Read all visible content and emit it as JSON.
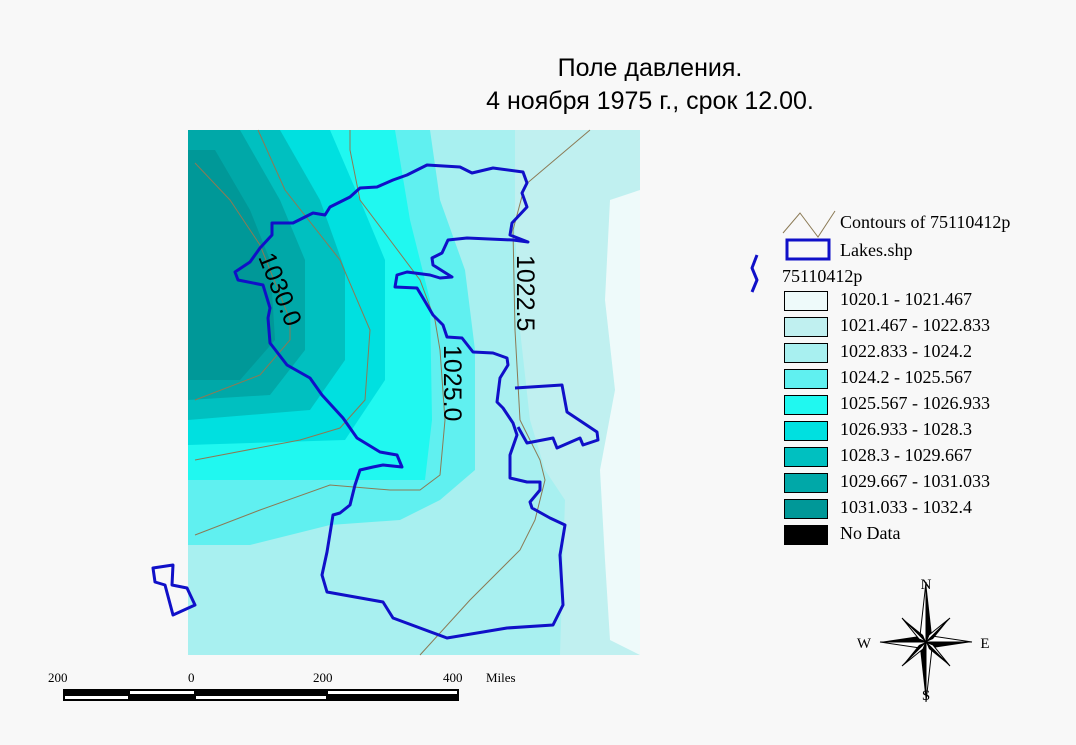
{
  "title": {
    "line1": "Поле давления.",
    "line2": "4 ноября 1975 г., срок 12.00."
  },
  "map": {
    "contour_labels": [
      "1030.0",
      "1025.0",
      "1022.5"
    ],
    "colors": {
      "lake": "#1010c8",
      "contour": "#8b7a55",
      "background": "#f8f8f8"
    }
  },
  "legend": {
    "contours_label": "Contours of 75110412p",
    "lakes_label": "Lakes.shp",
    "grid_title": "75110412p",
    "classes": [
      {
        "label": "1020.1 - 1021.467",
        "color": "#eefafa"
      },
      {
        "label": "1021.467 - 1022.833",
        "color": "#c0f0f0"
      },
      {
        "label": "1022.833 - 1024.2",
        "color": "#a8f0f0"
      },
      {
        "label": "1024.2 - 1025.567",
        "color": "#60f0f0"
      },
      {
        "label": "1025.567 - 1026.933",
        "color": "#20f8f0"
      },
      {
        "label": "1026.933 - 1028.3",
        "color": "#00e0e0"
      },
      {
        "label": "1028.3 - 1029.667",
        "color": "#00c0c0"
      },
      {
        "label": "1029.667 - 1031.033",
        "color": "#00a8a8"
      },
      {
        "label": "1031.033 - 1032.4",
        "color": "#009898"
      },
      {
        "label": "No Data",
        "color": "#000000"
      }
    ]
  },
  "compass": {
    "n": "N",
    "s": "S",
    "w": "W",
    "e": "E"
  },
  "scalebar": {
    "ticks": [
      "200",
      "0",
      "200",
      "400"
    ],
    "units": "Miles"
  }
}
